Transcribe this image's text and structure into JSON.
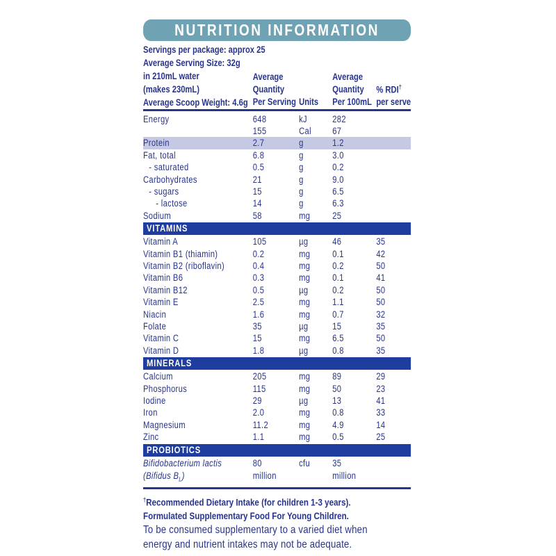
{
  "title": "NUTRITION INFORMATION",
  "colors": {
    "header_band": "#6FA2B3",
    "text_navy": "#28348C",
    "section_bar_blue": "#1F3D9E",
    "protein_highlight": "#C6C9E4",
    "background": "#FFFFFF"
  },
  "intro": [
    "Servings per package: approx 25",
    "Average Serving Size: 32g",
    "in 210mL water",
    "(makes 230mL)",
    "Average Scoop Weight: 4.6g"
  ],
  "columns": {
    "per_serving": [
      "Average",
      "Quantity",
      "Per Serving"
    ],
    "units": "Units",
    "per_100ml": [
      "Average",
      "Quantity",
      "Per 100mL"
    ],
    "rdi_line1": "% RDI",
    "rdi_dagger": "†",
    "rdi_line2": "per serve"
  },
  "sections": [
    {
      "header": null,
      "rows": [
        {
          "label": "Energy",
          "values": [
            "648",
            "kJ",
            "282",
            ""
          ]
        },
        {
          "label": "",
          "values": [
            "155",
            "Cal",
            "67",
            ""
          ]
        },
        {
          "label": "Protein",
          "values": [
            "2.7",
            "g",
            "1.2",
            ""
          ],
          "highlight": true
        },
        {
          "label": "Fat, total",
          "values": [
            "6.8",
            "g",
            "3.0",
            ""
          ]
        },
        {
          "label": "- saturated",
          "indent": 1,
          "values": [
            "0.5",
            "g",
            "0.2",
            ""
          ]
        },
        {
          "label": "Carbohydrates",
          "values": [
            "21",
            "g",
            "9.0",
            ""
          ]
        },
        {
          "label": "- sugars",
          "indent": 1,
          "values": [
            "15",
            "g",
            "6.5",
            ""
          ]
        },
        {
          "label": "- lactose",
          "indent": 2,
          "values": [
            "14",
            "g",
            "6.3",
            ""
          ]
        },
        {
          "label": "Sodium",
          "values": [
            "58",
            "mg",
            "25",
            ""
          ]
        }
      ]
    },
    {
      "header": "VITAMINS",
      "rows": [
        {
          "label": "Vitamin A",
          "values": [
            "105",
            "µg",
            "46",
            "35"
          ]
        },
        {
          "label": "Vitamin B1 (thiamin)",
          "values": [
            "0.2",
            "mg",
            "0.1",
            "42"
          ]
        },
        {
          "label": "Vitamin B2 (riboflavin)",
          "values": [
            "0.4",
            "mg",
            "0.2",
            "50"
          ]
        },
        {
          "label": "Vitamin B6",
          "values": [
            "0.3",
            "mg",
            "0.1",
            "41"
          ]
        },
        {
          "label": "Vitamin B12",
          "values": [
            "0.5",
            "µg",
            "0.2",
            "50"
          ]
        },
        {
          "label": "Vitamin E",
          "values": [
            "2.5",
            "mg",
            "1.1",
            "50"
          ]
        },
        {
          "label": "Niacin",
          "values": [
            "1.6",
            "mg",
            "0.7",
            "32"
          ]
        },
        {
          "label": "Folate",
          "values": [
            "35",
            "µg",
            "15",
            "35"
          ]
        },
        {
          "label": "Vitamin C",
          "values": [
            "15",
            "mg",
            "6.5",
            "50"
          ]
        },
        {
          "label": "Vitamin D",
          "values": [
            "1.8",
            "µg",
            "0.8",
            "35"
          ]
        }
      ]
    },
    {
      "header": "MINERALS",
      "rows": [
        {
          "label": "Calcium",
          "values": [
            "205",
            "mg",
            "89",
            "29"
          ]
        },
        {
          "label": "Phosphorus",
          "values": [
            "115",
            "mg",
            "50",
            "23"
          ]
        },
        {
          "label": "Iodine",
          "values": [
            "29",
            "µg",
            "13",
            "41"
          ]
        },
        {
          "label": "Iron",
          "values": [
            "2.0",
            "mg",
            "0.8",
            "33"
          ]
        },
        {
          "label": "Magnesium",
          "values": [
            "11.2",
            "mg",
            "4.9",
            "14"
          ]
        },
        {
          "label": "Zinc",
          "values": [
            "1.1",
            "mg",
            "0.5",
            "25"
          ]
        }
      ]
    },
    {
      "header": "PROBIOTICS",
      "rows": [
        {
          "label": "Bifidobacterium lactis",
          "italic": true,
          "values": [
            "80",
            "cfu",
            "35",
            ""
          ]
        },
        {
          "label": "(Bifidus B",
          "label_sub": "L",
          "label_post": ")",
          "italic": true,
          "values": [
            "million",
            "",
            "million",
            ""
          ]
        }
      ]
    }
  ],
  "footnotes": {
    "dagger": "†",
    "lines": [
      "Recommended Dietary Intake (for children 1-3 years).",
      "Formulated Supplementary Food For Young Children.",
      "To be consumed supplementary to a varied diet when",
      "energy and nutrient intakes may not be adequate."
    ]
  }
}
